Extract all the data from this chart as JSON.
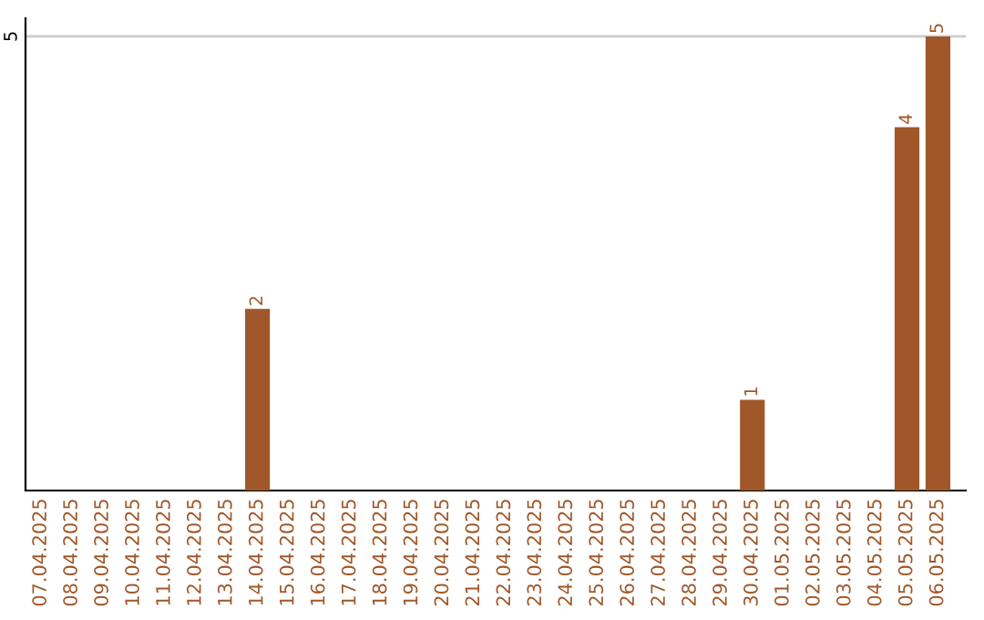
{
  "chart_data": {
    "type": "bar",
    "categories": [
      "07.04.2025",
      "08.04.2025",
      "09.04.2025",
      "10.04.2025",
      "11.04.2025",
      "12.04.2025",
      "13.04.2025",
      "14.04.2025",
      "15.04.2025",
      "16.04.2025",
      "17.04.2025",
      "18.04.2025",
      "19.04.2025",
      "20.04.2025",
      "21.04.2025",
      "22.04.2025",
      "23.04.2025",
      "24.04.2025",
      "25.04.2025",
      "26.04.2025",
      "27.04.2025",
      "28.04.2025",
      "29.04.2025",
      "30.04.2025",
      "01.05.2025",
      "02.05.2025",
      "03.05.2025",
      "04.05.2025",
      "05.05.2025",
      "06.05.2025"
    ],
    "values": [
      0,
      0,
      0,
      0,
      0,
      0,
      0,
      2,
      0,
      0,
      0,
      0,
      0,
      0,
      0,
      0,
      0,
      0,
      0,
      0,
      0,
      0,
      0,
      1,
      0,
      0,
      0,
      0,
      4,
      5
    ],
    "value_labels": [
      null,
      null,
      null,
      null,
      null,
      null,
      null,
      "2",
      null,
      null,
      null,
      null,
      null,
      null,
      null,
      null,
      null,
      null,
      null,
      null,
      null,
      null,
      null,
      "1",
      null,
      null,
      null,
      null,
      "4",
      "5"
    ],
    "color": "#a0582a",
    "ylim": [
      0,
      5.2
    ],
    "yticks": [
      5
    ],
    "grid": "y",
    "legend": false
  }
}
